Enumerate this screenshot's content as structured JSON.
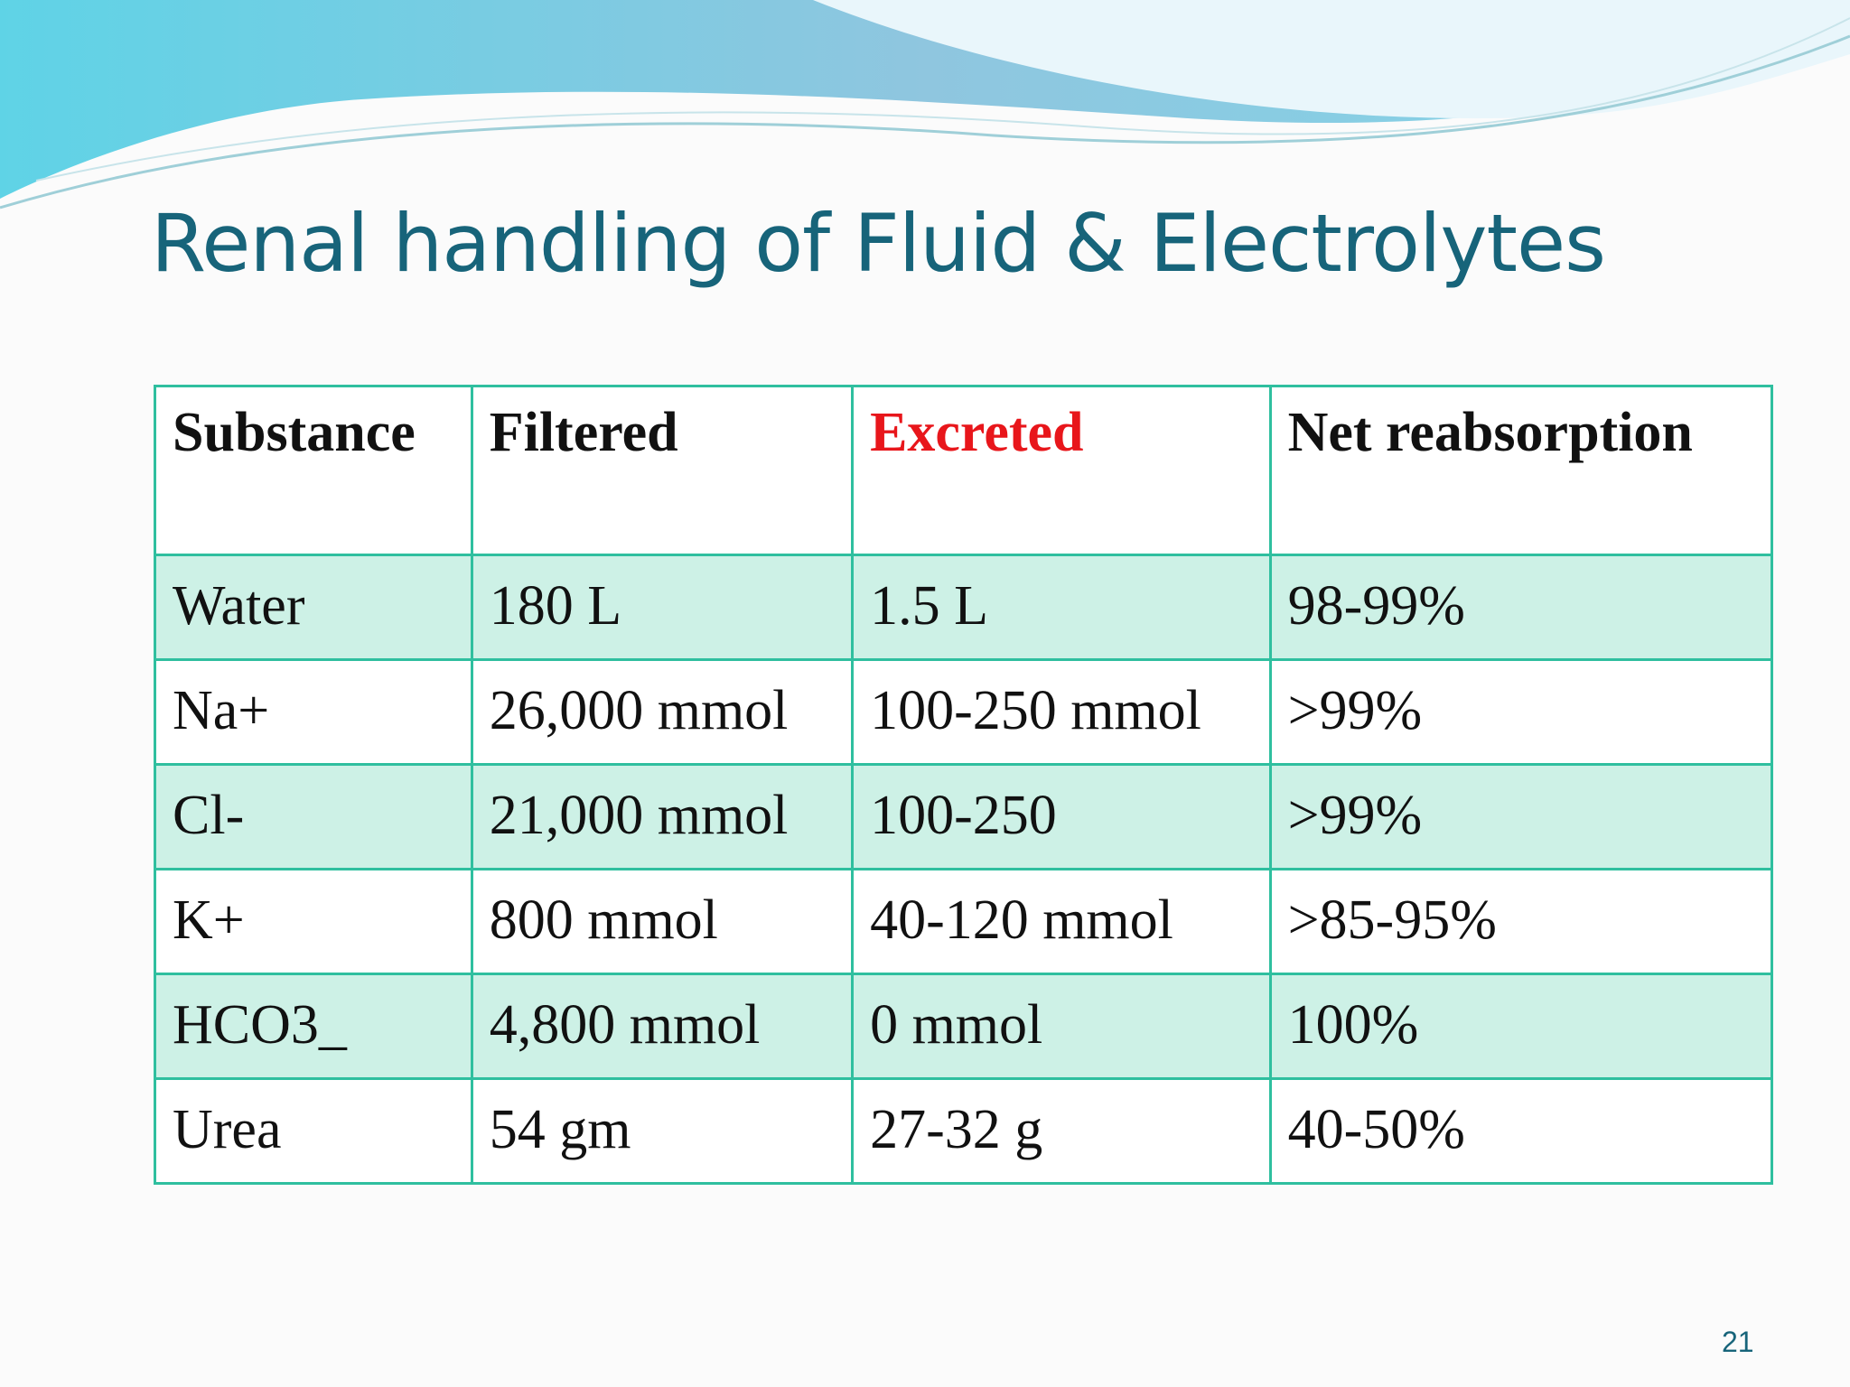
{
  "header": {
    "title": "Renal handling of Fluid & Electrolytes"
  },
  "table": {
    "columns": [
      "Substance",
      "Filtered",
      "Excreted",
      "Net reabsorption"
    ],
    "rows": [
      [
        "Water",
        "180 L",
        "1.5 L",
        "98-99%"
      ],
      [
        "Na+",
        "26,000 mmol",
        "100-250 mmol",
        ">99%"
      ],
      [
        "Cl-",
        "21,000 mmol",
        "100-250",
        ">99%"
      ],
      [
        "K+",
        "800 mmol",
        "40-120 mmol",
        ">85-95%"
      ],
      [
        "HCO3_",
        "4,800 mmol",
        "0 mmol",
        "100%"
      ],
      [
        "Urea",
        "54 gm",
        "27-32 g",
        "40-50%"
      ]
    ]
  },
  "footer": {
    "page_number": "21"
  }
}
